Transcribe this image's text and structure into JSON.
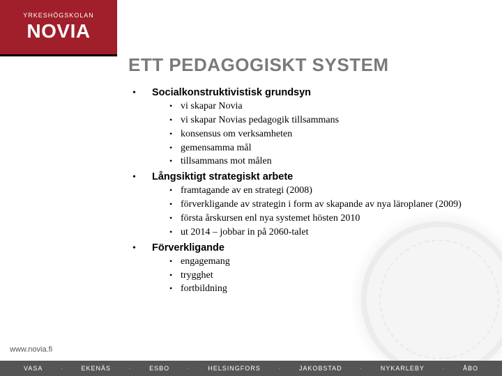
{
  "colors": {
    "logo_bg": "#a01f2a",
    "title": "#7a7a7a",
    "footer_bg": "#555555"
  },
  "logo": {
    "top": "YRKESHÖGSKOLAN",
    "main": "NOVIA"
  },
  "title": "ETT PEDAGOGISKT SYSTEM",
  "sections": [
    {
      "heading": "Socialkonstruktivistisk grundsyn",
      "items": [
        "vi skapar Novia",
        "vi skapar Novias pedagogik tillsammans",
        "konsensus om verksamheten",
        "gemensamma mål",
        "tillsammans mot målen"
      ]
    },
    {
      "heading": "Långsiktigt strategiskt arbete",
      "items": [
        "framtagande av en strategi (2008)",
        "förverkligande av strategin i form av skapande av nya läroplaner (2009)",
        "första årskursen enl nya systemet  hösten 2010",
        "ut 2014 – jobbar in på 2060-talet"
      ]
    },
    {
      "heading": "Förverkligande",
      "items": [
        "engagemang",
        "trygghet",
        "fortbildning"
      ]
    }
  ],
  "footer_url": "www.novia.fi",
  "footer_cities": [
    "VASA",
    "EKENÄS",
    "ESBO",
    "HELSINGFORS",
    "JAKOBSTAD",
    "NYKARLEBY",
    "ÅBO"
  ]
}
